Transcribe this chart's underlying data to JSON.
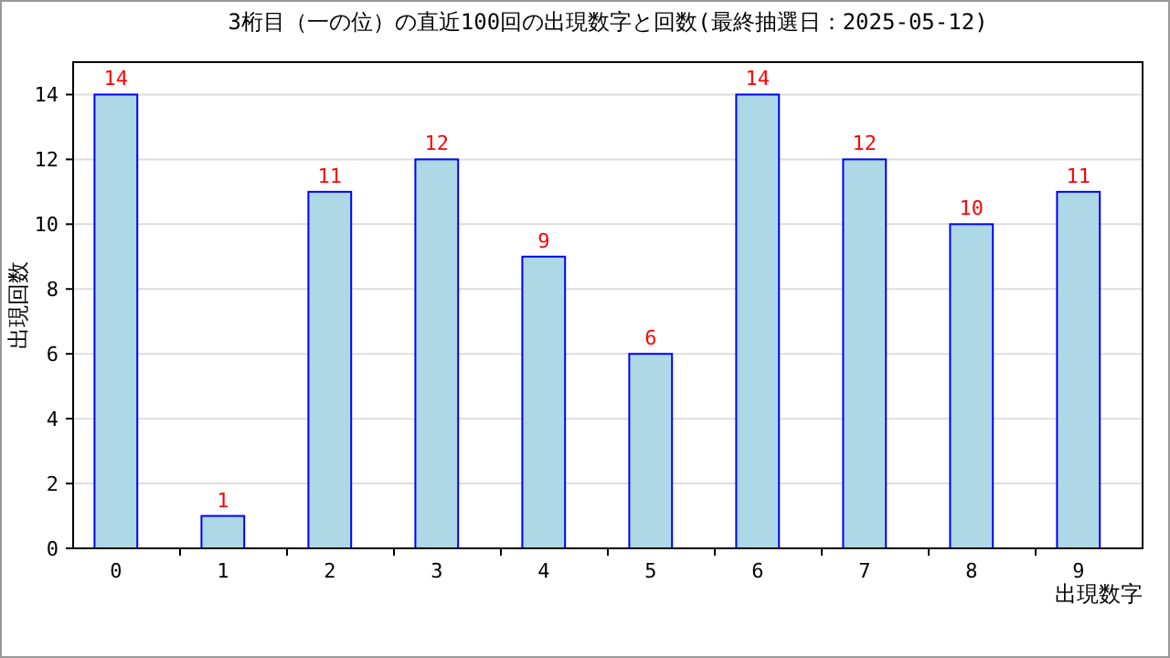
{
  "chart_data": {
    "type": "bar",
    "title": "3桁目（一の位）の直近100回の出現数字と回数(最終抽選日：2025-05-12)",
    "xlabel": "出現数字",
    "ylabel": "出現回数",
    "categories": [
      "0",
      "1",
      "2",
      "3",
      "4",
      "5",
      "6",
      "7",
      "8",
      "9"
    ],
    "series": [
      {
        "color": "#add8e6",
        "values": [
          14,
          1,
          11,
          12,
          9,
          6,
          14,
          12,
          10,
          11
        ]
      }
    ],
    "ylim": [
      0,
      15
    ],
    "yticks": [
      0,
      2,
      4,
      6,
      8,
      10,
      12,
      14
    ],
    "grid": "y",
    "data_labels": true
  }
}
